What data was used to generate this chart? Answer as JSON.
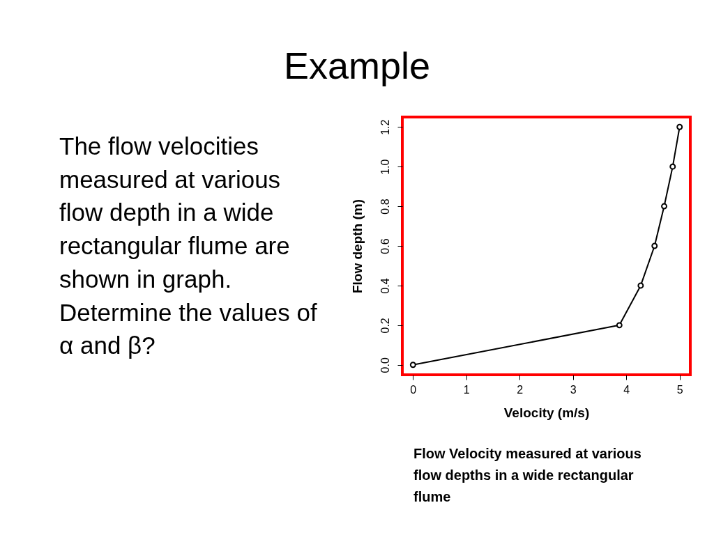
{
  "chart_data": {
    "type": "line",
    "title": "Example",
    "xlabel": "Velocity (m/s)",
    "ylabel": "Flow depth (m)",
    "annotations": [
      "The flow velocities measured at various flow depth in a wide rectangular flume are shown in graph. Determine the values of α and β?",
      "Flow Velocity measured at various flow depths in a wide rectangular flume"
    ],
    "x": [
      0,
      3.87,
      4.27,
      4.53,
      4.71,
      4.87,
      5.0
    ],
    "values": [
      0,
      0.2,
      0.4,
      0.6,
      0.8,
      1.0,
      1.2
    ],
    "color": "#000000",
    "marker": "circle",
    "line_style": "solid",
    "xlim": [
      -0.2,
      5.2
    ],
    "ylim": [
      -0.05,
      1.25
    ],
    "xticks": [
      0,
      1,
      2,
      3,
      4,
      5
    ],
    "yticks": [
      {
        "value": 0,
        "label": "0.0"
      },
      0.2,
      0.4,
      0.6,
      0.8,
      {
        "value": 1,
        "label": "1.0"
      },
      1.2
    ]
  }
}
